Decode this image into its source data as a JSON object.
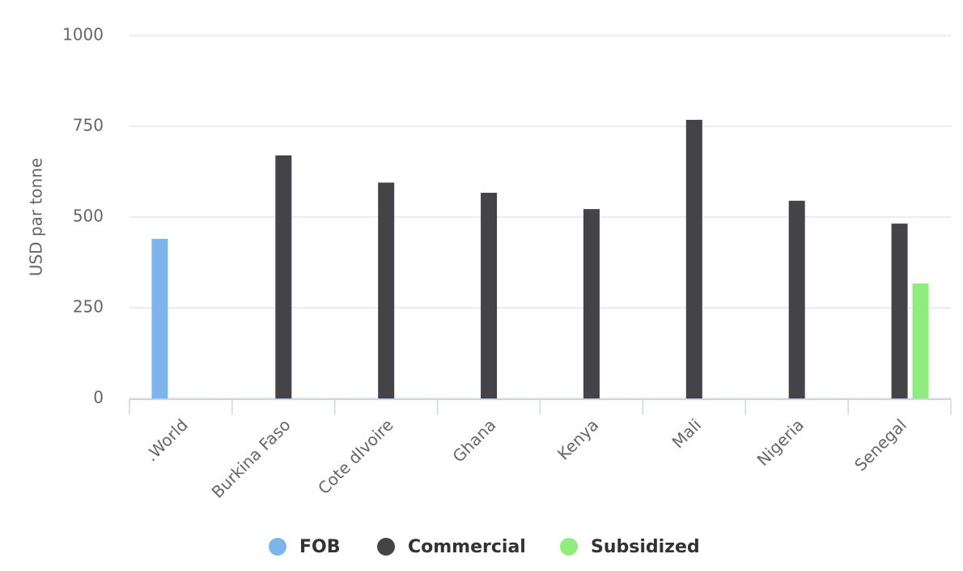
{
  "chart_data": {
    "type": "bar",
    "y_axis_label": "USD par tonne",
    "categories": [
      ".World",
      "Burkina Faso",
      "Cote dIvoire",
      "Ghana",
      "Kenya",
      "Mali",
      "Nigeria",
      "Senegal"
    ],
    "series": [
      {
        "name": "FOB",
        "color": "#7cb5ec",
        "values": [
          440,
          null,
          null,
          null,
          null,
          null,
          null,
          null
        ]
      },
      {
        "name": "Commercial",
        "color": "#434348",
        "values": [
          null,
          670,
          595,
          567,
          522,
          768,
          545,
          482
        ]
      },
      {
        "name": "Subsidized",
        "color": "#90ed7d",
        "values": [
          null,
          null,
          null,
          null,
          null,
          null,
          null,
          317
        ]
      }
    ],
    "ylim": [
      0,
      1000
    ],
    "yticks": [
      0,
      250,
      500,
      750,
      1000
    ],
    "grid": true,
    "legend": "bottom"
  }
}
